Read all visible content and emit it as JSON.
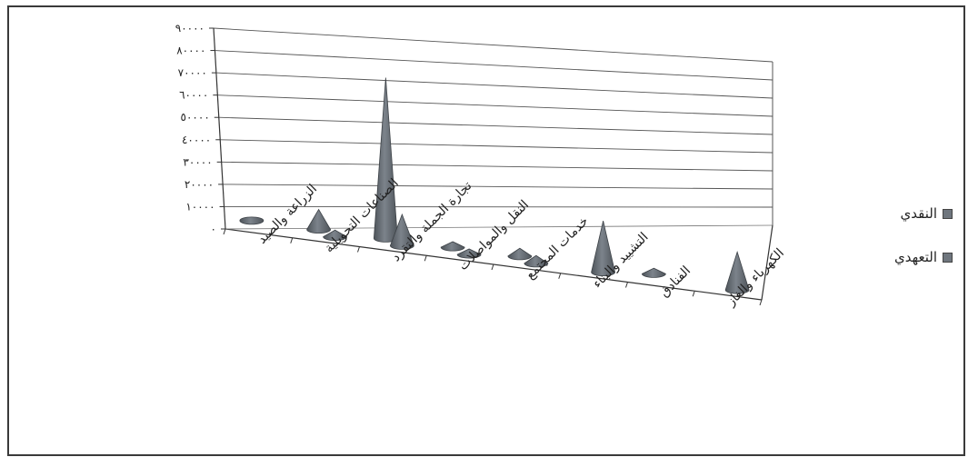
{
  "chart_data": {
    "type": "bar",
    "shape": "cone-3d",
    "categories": [
      "الزراعة والصيد",
      "الصناعات التحويلية",
      "تجارة الجملة والتقرد",
      "النقل والمواصلات",
      "خدمات المجتمع",
      "التشييد والبناء",
      "الفنادق",
      "الكهرباء والغاز"
    ],
    "series": [
      {
        "name": "النقدي",
        "values": [
          1500,
          9000,
          72000,
          2500,
          3500,
          0,
          2500,
          0
        ]
      },
      {
        "name": "التعهدي",
        "values": [
          0,
          3000,
          14000,
          2500,
          3500,
          23000,
          0,
          17000
        ]
      }
    ],
    "ytick_labels": [
      "٠",
      "١٠٠٠٠",
      "٢٠٠٠٠",
      "٣٠٠٠٠",
      "٤٠٠٠٠",
      "٥٠٠٠٠",
      "٦٠٠٠٠",
      "٧٠٠٠٠",
      "٨٠٠٠٠",
      "٩٠٠٠٠"
    ],
    "ylim": [
      0,
      90000
    ],
    "grid": true,
    "legend_position": "right",
    "colors": {
      "cone": "#7c838b",
      "cone_dark": "#4e545a",
      "grid": "#555555"
    }
  }
}
